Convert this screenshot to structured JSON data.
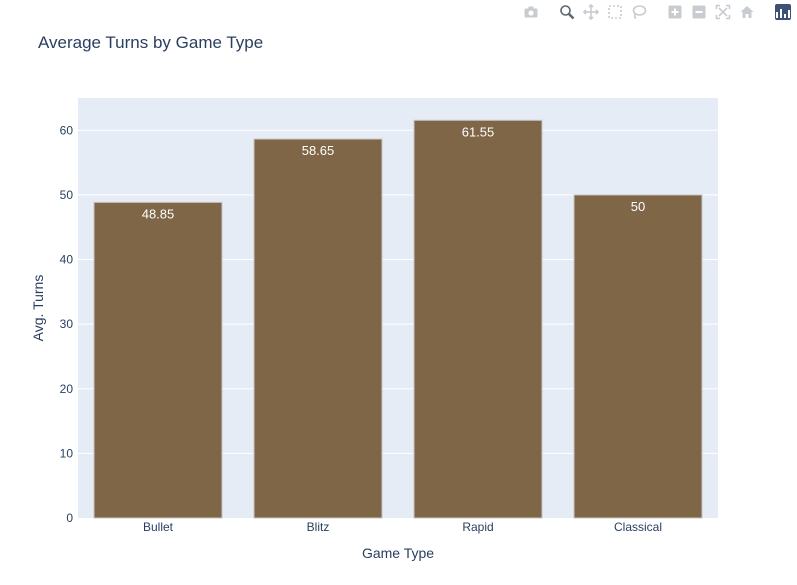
{
  "chart_data": {
    "type": "bar",
    "title": "Average Turns by Game Type",
    "xlabel": "Game Type",
    "ylabel": "Avg. Turns",
    "categories": [
      "Bullet",
      "Blitz",
      "Rapid",
      "Classical"
    ],
    "values": [
      48.85,
      58.65,
      61.55,
      50
    ],
    "data_labels": [
      "48.85",
      "58.65",
      "61.55",
      "50"
    ],
    "ylim": [
      0,
      65
    ],
    "yticks": [
      0,
      10,
      20,
      30,
      40,
      50,
      60
    ],
    "grid": true,
    "legend": "none"
  },
  "colors": {
    "bar": "#7f6647",
    "bar_outline": "#c8c8c8",
    "plot_background": "#e5ecf6",
    "gridline": "#ffffff",
    "text": "#2a3f5f",
    "data_label": "#ffffff"
  },
  "modebar": {
    "buttons": [
      {
        "icon": "camera-icon",
        "action": "download-plot"
      },
      {
        "icon": "zoom-icon",
        "action": "zoom",
        "active": true
      },
      {
        "icon": "pan-icon",
        "action": "pan"
      },
      {
        "icon": "box-select-icon",
        "action": "box-select"
      },
      {
        "icon": "lasso-select-icon",
        "action": "lasso-select"
      },
      {
        "icon": "zoom-in-icon",
        "action": "zoom-in"
      },
      {
        "icon": "zoom-out-icon",
        "action": "zoom-out"
      },
      {
        "icon": "autoscale-icon",
        "action": "autoscale"
      },
      {
        "icon": "home-icon",
        "action": "reset-axes"
      },
      {
        "icon": "plotly-logo-icon",
        "action": "plotly-logo"
      }
    ]
  }
}
